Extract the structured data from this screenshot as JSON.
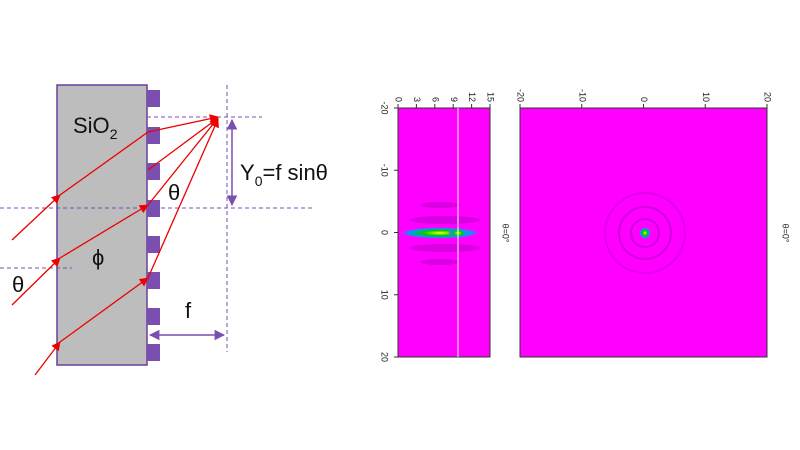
{
  "diagram": {
    "material": {
      "base": "SiO",
      "sub": "2"
    },
    "incident_angle": "θ",
    "phase": "ϕ",
    "exit_angle": "θ",
    "offset_formula": {
      "base": "Y",
      "sub": "0",
      "rest": "=f sinθ"
    },
    "focal_length": "f"
  },
  "panel_1": {
    "top_ticks": [
      0,
      3,
      6,
      9,
      12,
      15
    ],
    "left_ticks": [
      -20,
      -10,
      0,
      10,
      20
    ],
    "side_label": "θ=0°"
  },
  "panel_2": {
    "top_ticks": [
      -20,
      -10,
      0,
      10,
      20
    ],
    "side_label": "θ=0°"
  }
}
